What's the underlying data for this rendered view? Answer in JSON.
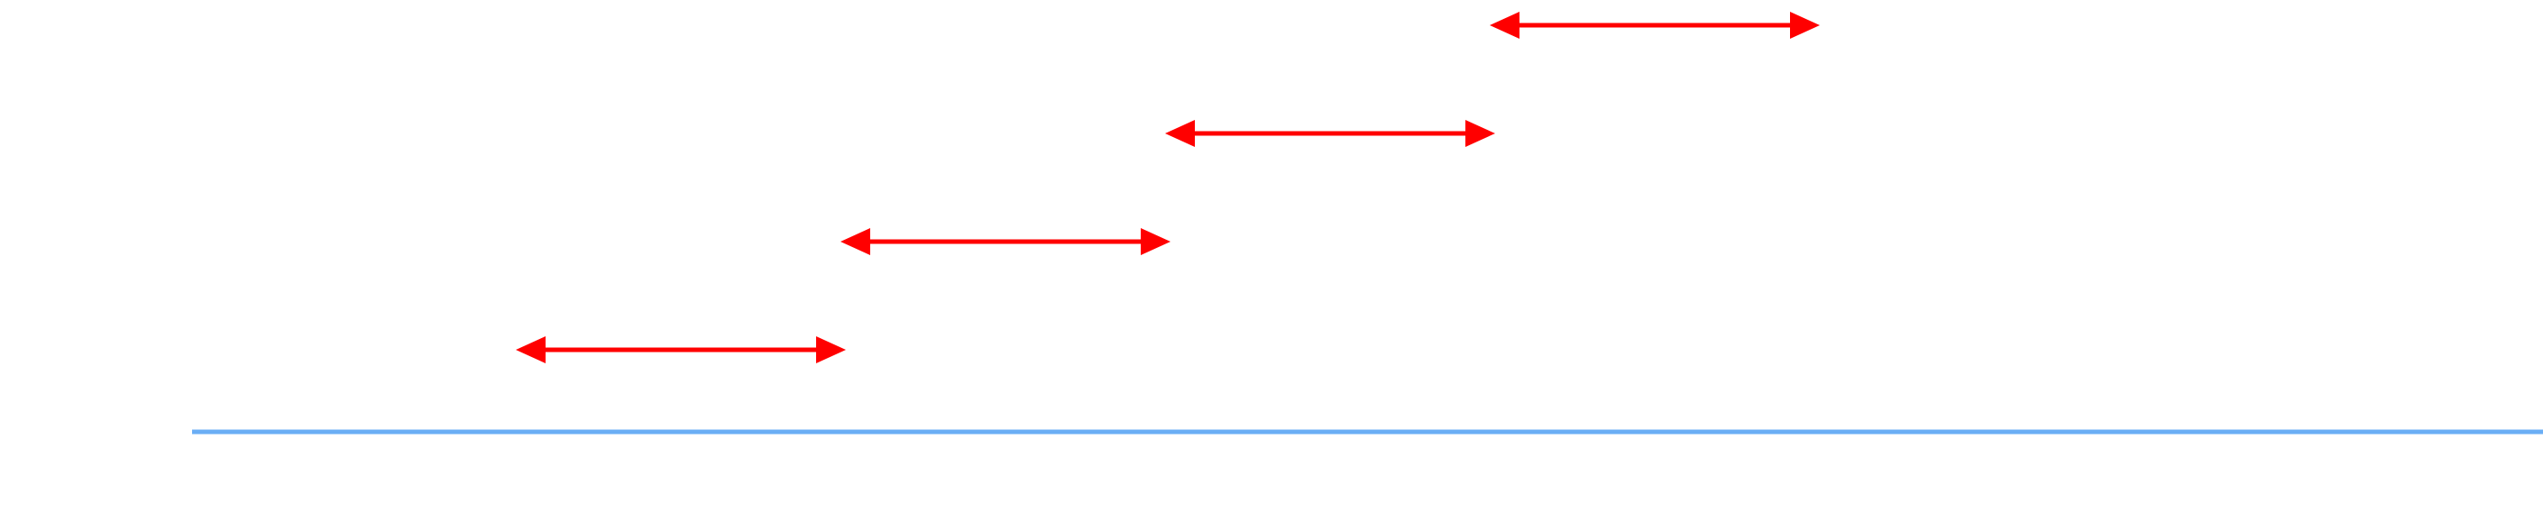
{
  "diagram": {
    "background": "#ffffff",
    "interval_color": "#ff0000",
    "axis_color": "#6aaef5",
    "intervals": [
      {
        "start": 1,
        "end": 2
      },
      {
        "start": 2,
        "end": 3
      },
      {
        "start": 3,
        "end": 4
      },
      {
        "start": 4,
        "end": 5
      }
    ],
    "axis": {
      "start": 0,
      "end": 7,
      "direction": "right"
    }
  }
}
